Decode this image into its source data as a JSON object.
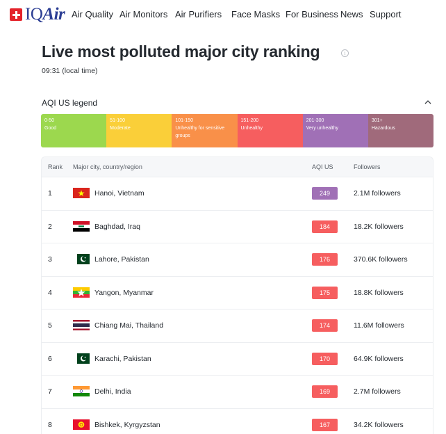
{
  "nav": {
    "brand_prefix": "IQ",
    "brand_suffix": "Air",
    "items": [
      "Air Quality",
      "Air Monitors",
      "Air Purifiers",
      "Face Masks",
      "For Business",
      "News",
      "Support"
    ]
  },
  "header": {
    "title": "Live most polluted major city ranking",
    "local_time": "09:31 (local time)"
  },
  "legend": {
    "title": "AQI US legend",
    "segments": [
      {
        "range": "0-50",
        "label": "Good",
        "color": "#9cd84e"
      },
      {
        "range": "51-100",
        "label": "Moderate",
        "color": "#facf39"
      },
      {
        "range": "101-150",
        "label": "Unhealthy for sensitive groups",
        "color": "#f99049"
      },
      {
        "range": "151-200",
        "label": "Unhealthy",
        "color": "#f65e5f"
      },
      {
        "range": "201-300",
        "label": "Very unhealthy",
        "color": "#a070b6"
      },
      {
        "range": "301+",
        "label": "Hazardous",
        "color": "#a06a7b"
      }
    ]
  },
  "table": {
    "headers": {
      "rank": "Rank",
      "city": "Major city, country/region",
      "aqi": "AQI US",
      "followers": "Followers"
    },
    "rows": [
      {
        "rank": "1",
        "city": "Hanoi, Vietnam",
        "aqi": "249",
        "aqi_color": "#a070b6",
        "followers": "2.1M followers",
        "flag": "vietnam-flag-icon"
      },
      {
        "rank": "2",
        "city": "Baghdad, Iraq",
        "aqi": "184",
        "aqi_color": "#f65e5f",
        "followers": "18.2K followers",
        "flag": "iraq-flag-icon"
      },
      {
        "rank": "3",
        "city": "Lahore, Pakistan",
        "aqi": "176",
        "aqi_color": "#f65e5f",
        "followers": "370.6K followers",
        "flag": "pakistan-flag-icon"
      },
      {
        "rank": "4",
        "city": "Yangon, Myanmar",
        "aqi": "175",
        "aqi_color": "#f65e5f",
        "followers": "18.8K followers",
        "flag": "myanmar-flag-icon"
      },
      {
        "rank": "5",
        "city": "Chiang Mai, Thailand",
        "aqi": "174",
        "aqi_color": "#f65e5f",
        "followers": "11.6M followers",
        "flag": "thailand-flag-icon"
      },
      {
        "rank": "6",
        "city": "Karachi, Pakistan",
        "aqi": "170",
        "aqi_color": "#f65e5f",
        "followers": "64.9K followers",
        "flag": "pakistan-flag-icon"
      },
      {
        "rank": "7",
        "city": "Delhi, India",
        "aqi": "169",
        "aqi_color": "#f65e5f",
        "followers": "2.7M followers",
        "flag": "india-flag-icon"
      },
      {
        "rank": "8",
        "city": "Bishkek, Kyrgyzstan",
        "aqi": "167",
        "aqi_color": "#f65e5f",
        "followers": "34.2K followers",
        "flag": "kyrgyzstan-flag-icon"
      }
    ]
  }
}
